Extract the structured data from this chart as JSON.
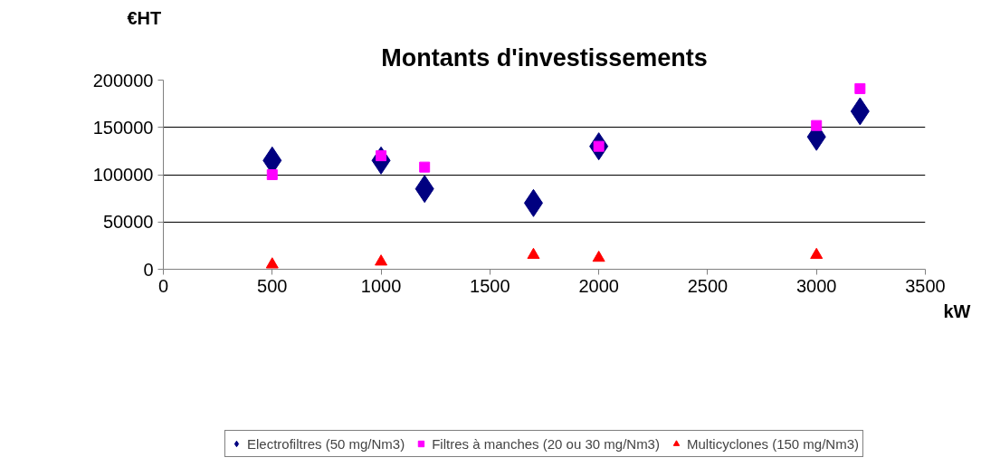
{
  "chart_data": {
    "type": "scatter",
    "title": "Montants d'investissements",
    "ylabel": "€HT",
    "xlabel": "kW",
    "xlim": [
      0,
      3500
    ],
    "xticks": [
      0,
      500,
      1000,
      1500,
      2000,
      2500,
      3000,
      3500
    ],
    "ylim": [
      0,
      200000
    ],
    "yticks": [
      0,
      50000,
      100000,
      150000,
      200000
    ],
    "grid": "y",
    "legend": "bottom",
    "series": [
      {
        "name": "Electrofiltres (50 mg/Nm3)",
        "color": "#000080",
        "marker": "diamond",
        "x": [
          500,
          1000,
          1200,
          1700,
          2000,
          3000,
          3200
        ],
        "values": [
          115000,
          115000,
          85000,
          70000,
          130000,
          140000,
          167000
        ]
      },
      {
        "name": "Filtres à manches (20 ou 30 mg/Nm3)",
        "color": "#ff00ff",
        "marker": "square",
        "x": [
          500,
          1000,
          1200,
          2000,
          3000,
          3200
        ],
        "values": [
          100000,
          120000,
          108000,
          130000,
          152000,
          191000
        ]
      },
      {
        "name": "Multicyclones (150 mg/Nm3)",
        "color": "#ff0000",
        "marker": "triangle",
        "x": [
          500,
          1000,
          1700,
          2000,
          3000
        ],
        "values": [
          5000,
          8000,
          15000,
          12000,
          15000
        ]
      }
    ]
  }
}
